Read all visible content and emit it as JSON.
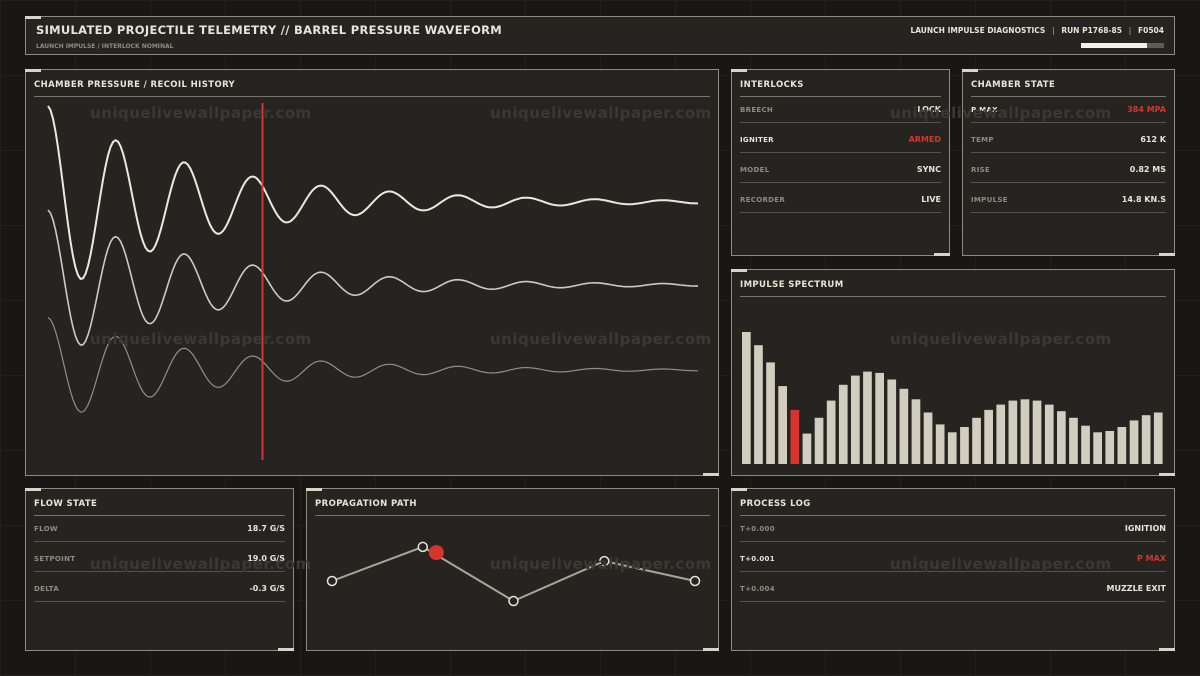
{
  "header": {
    "title": "SIMULATED PROJECTILE TELEMETRY // BARREL PRESSURE WAVEFORM",
    "subtitle": "LAUNCH IMPULSE / INTERLOCK NOMINAL",
    "diag": "LAUNCH IMPULSE DIAGNOSTICS",
    "run": "RUN P1768-85",
    "frame": "F0504",
    "progress": 0.8
  },
  "watermark": "uniquelivewallpaper.com",
  "waveform": {
    "title": "CHAMBER PRESSURE / RECOIL HISTORY"
  },
  "interlocks": {
    "title": "INTERLOCKS",
    "rows": [
      {
        "key": "BREECH",
        "value": "LOCK"
      },
      {
        "key": "IGNITER",
        "value": "ARMED"
      },
      {
        "key": "MODEL",
        "value": "SYNC"
      },
      {
        "key": "RECORDER",
        "value": "LIVE"
      }
    ]
  },
  "chamber": {
    "title": "CHAMBER STATE",
    "rows": [
      {
        "key": "P MAX",
        "value": "384 MPA"
      },
      {
        "key": "TEMP",
        "value": "612 K"
      },
      {
        "key": "RISE",
        "value": "0.82 MS"
      },
      {
        "key": "IMPULSE",
        "value": "14.8 KN.S"
      }
    ]
  },
  "flow": {
    "title": "FLOW STATE",
    "rows": [
      {
        "key": "FLOW",
        "value": "18.7 G/S"
      },
      {
        "key": "SETPOINT",
        "value": "19.0 G/S"
      },
      {
        "key": "DELTA",
        "value": "-0.3 G/S"
      }
    ]
  },
  "propagation": {
    "title": "PROPAGATION PATH"
  },
  "log": {
    "title": "PROCESS LOG",
    "rows": [
      {
        "key": "T+0.000",
        "value": "IGNITION"
      },
      {
        "key": "T+0.001",
        "value": "P MAX"
      },
      {
        "key": "T+0.004",
        "value": "MUZZLE EXIT"
      }
    ]
  },
  "colors": {
    "accent": "#d6342d",
    "line": "#ece8dc",
    "bar": "#d2cebf",
    "panel": "#252420"
  },
  "chart_data": [
    {
      "type": "line",
      "title": "CHAMBER PRESSURE / RECOIL HISTORY",
      "x": [
        0,
        0.05,
        0.1,
        0.15,
        0.2,
        0.25,
        0.3,
        0.35,
        0.4,
        0.45,
        0.5,
        0.55,
        0.6,
        0.65,
        0.7,
        0.75,
        0.8,
        0.85,
        0.9,
        0.95,
        1.0
      ],
      "series": [
        {
          "values": [
            0.0,
            1.0,
            0.05,
            0.8,
            0.18,
            0.58,
            0.3,
            0.48,
            0.36,
            0.44,
            0.39,
            0.42,
            0.4,
            0.415,
            0.405,
            0.41,
            0.405,
            0.408,
            0.405,
            0.407,
            0.406
          ]
        },
        {
          "values": [
            0.0,
            0.8,
            0.05,
            0.62,
            0.15,
            0.46,
            0.25,
            0.39,
            0.3,
            0.35,
            0.32,
            0.34,
            0.33,
            0.335,
            0.33,
            0.333,
            0.331,
            0.332,
            0.331,
            0.332,
            0.331
          ]
        },
        {
          "values": [
            0.0,
            0.55,
            0.05,
            0.42,
            0.12,
            0.32,
            0.19,
            0.28,
            0.22,
            0.25,
            0.23,
            0.245,
            0.235,
            0.24,
            0.237,
            0.239,
            0.238,
            0.238,
            0.238,
            0.238,
            0.238
          ]
        }
      ],
      "marker_x": 0.33,
      "grid": false
    },
    {
      "type": "bar",
      "title": "IMPULSE SPECTRUM",
      "values": [
        1.0,
        0.9,
        0.77,
        0.59,
        0.41,
        0.23,
        0.35,
        0.48,
        0.6,
        0.67,
        0.7,
        0.69,
        0.64,
        0.57,
        0.49,
        0.39,
        0.3,
        0.24,
        0.28,
        0.35,
        0.41,
        0.45,
        0.48,
        0.49,
        0.48,
        0.45,
        0.4,
        0.35,
        0.29,
        0.24,
        0.25,
        0.28,
        0.33,
        0.37,
        0.39
      ],
      "highlight_index": 4
    },
    {
      "type": "line",
      "title": "PROPAGATION PATH",
      "x": [
        0,
        1,
        2,
        3,
        4
      ],
      "values": [
        0.35,
        0.95,
        0.0,
        0.7,
        0.35
      ],
      "highlight_x": 1.15,
      "highlight_y": 0.85
    }
  ]
}
